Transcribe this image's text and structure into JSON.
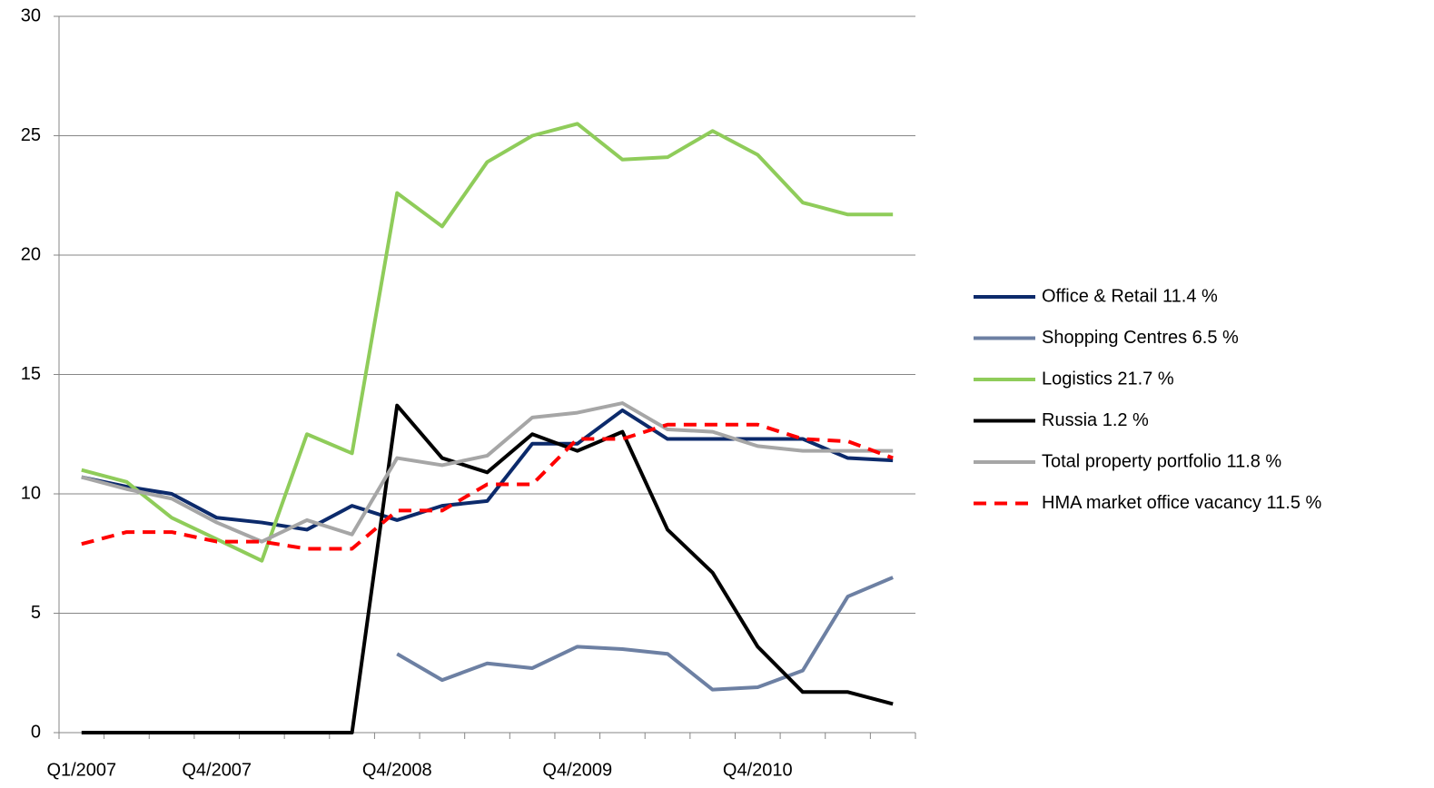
{
  "chart_data": {
    "type": "line",
    "categories": [
      "Q1/2007",
      null,
      null,
      "Q4/2007",
      null,
      null,
      null,
      "Q4/2008",
      null,
      null,
      null,
      "Q4/2009",
      null,
      null,
      null,
      "Q4/2010",
      null,
      null,
      null
    ],
    "series": [
      {
        "name": "Office & Retail 11.4 %",
        "color": "#0c2a6b",
        "values": [
          10.7,
          10.3,
          10.0,
          9.0,
          8.8,
          8.5,
          9.5,
          8.9,
          9.5,
          9.7,
          12.1,
          12.1,
          13.5,
          12.3,
          12.3,
          12.3,
          12.3,
          11.5,
          11.4
        ]
      },
      {
        "name": "Shopping Centres 6.5 %",
        "color": "#6d80a3",
        "values": [
          null,
          null,
          null,
          null,
          null,
          null,
          null,
          3.3,
          2.2,
          2.9,
          2.7,
          3.6,
          3.5,
          3.3,
          1.8,
          1.9,
          2.6,
          5.7,
          6.5
        ]
      },
      {
        "name": "Logistics 21.7 %",
        "color": "#8fcc5a",
        "values": [
          11.0,
          10.5,
          9.0,
          8.1,
          7.2,
          12.5,
          11.7,
          22.6,
          21.2,
          23.9,
          25.0,
          25.5,
          24.0,
          24.1,
          25.2,
          24.2,
          22.2,
          21.7,
          21.7
        ]
      },
      {
        "name": "Russia 1.2 %",
        "color": "#000000",
        "values": [
          0,
          0,
          0,
          0,
          0,
          0,
          0,
          13.7,
          11.5,
          10.9,
          12.5,
          11.8,
          12.6,
          8.5,
          6.7,
          3.6,
          1.7,
          1.7,
          1.2
        ]
      },
      {
        "name": "Total property portfolio 11.8 %",
        "color": "#a6a6a6",
        "values": [
          10.7,
          10.2,
          9.8,
          8.8,
          8.0,
          8.9,
          8.3,
          11.5,
          11.2,
          11.6,
          13.2,
          13.4,
          13.8,
          12.7,
          12.6,
          12.0,
          11.8,
          11.8,
          11.8
        ]
      },
      {
        "name": "HMA market office vacancy 11.5 %",
        "color": "#ff0000",
        "dashed": true,
        "values": [
          7.9,
          8.4,
          8.4,
          8.0,
          8.0,
          7.7,
          7.7,
          9.3,
          9.3,
          10.4,
          10.4,
          12.3,
          12.3,
          12.9,
          12.9,
          12.9,
          12.3,
          12.2,
          11.5
        ]
      }
    ],
    "ylim": [
      0,
      30
    ],
    "yticks": [
      0,
      5,
      10,
      15,
      20,
      25,
      30
    ],
    "grid": true,
    "legend": "right"
  }
}
